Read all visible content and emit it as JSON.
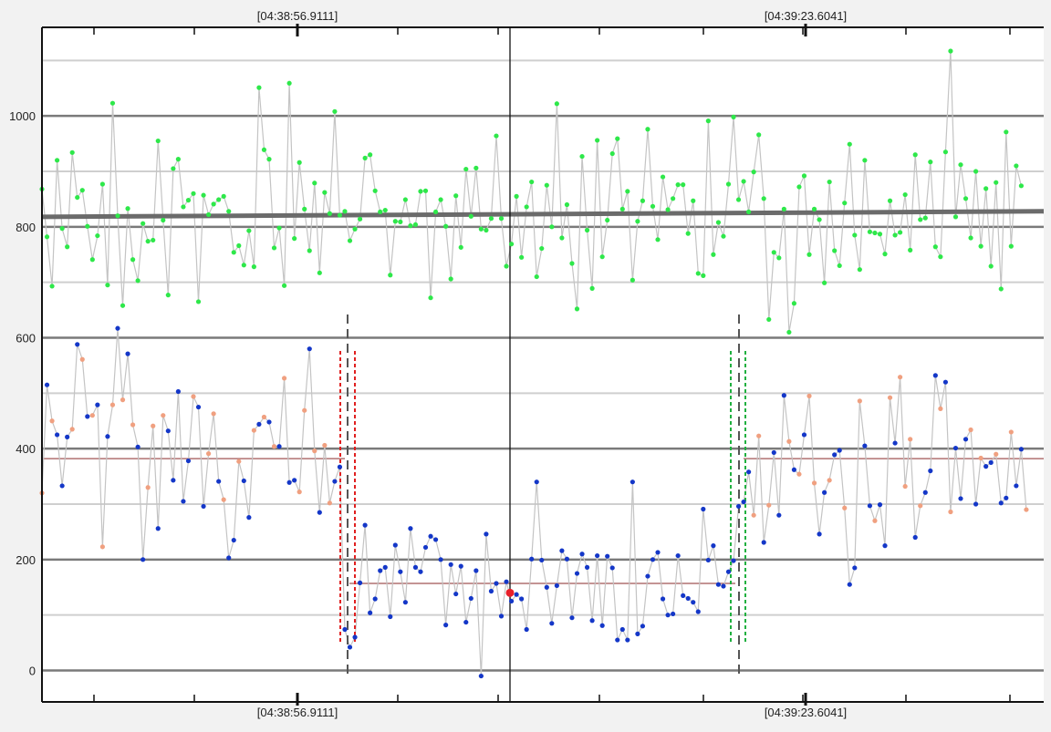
{
  "chart_data": {
    "type": "scatter",
    "title": "",
    "xlabel": "",
    "ylabel": "",
    "ylim": [
      -60,
      1160
    ],
    "grid": true,
    "y_ticks": [
      0,
      200,
      400,
      600,
      800,
      1000
    ],
    "markers": {
      "left": {
        "label": "[04:38:56.9111]"
      },
      "right": {
        "label": "[04:39:23.6041]"
      }
    },
    "trend_line": {
      "y_start": 818,
      "y_end": 828,
      "color": "#6b6b6b"
    },
    "reference_levels": [
      {
        "segment": "before",
        "y": 382
      },
      {
        "segment": "between",
        "y": 157
      },
      {
        "segment": "after",
        "y": 382
      }
    ],
    "cursor_point": {
      "index": 150,
      "y": 140,
      "color": "#e8202a"
    },
    "colors": {
      "upper": "#2ee84a",
      "blue": "#1437c8",
      "orange": "#f0a080",
      "line": "#c4c4c4",
      "grid_major": "#7a7a7a",
      "grid_minor": "#cfcfcf",
      "ref_line": "#b07070",
      "red_dash": "#e02020",
      "green_dash": "#20b040",
      "marker_dash": "#555555"
    },
    "series": [
      {
        "color": "green",
        "values": [
          868,
          782,
          693,
          920,
          797,
          764,
          934,
          853,
          866,
          801,
          741,
          784,
          877,
          695,
          1023,
          820,
          658,
          833,
          741,
          703,
          806,
          774,
          776,
          955,
          812,
          677,
          905,
          922,
          836,
          848,
          860,
          665,
          857,
          822,
          841,
          849,
          855,
          828,
          754,
          766,
          731,
          793,
          728,
          1051,
          939,
          922,
          762,
          798,
          694,
          1059,
          779,
          916,
          832,
          757,
          879,
          717,
          862,
          824,
          1008,
          821,
          828,
          775,
          796,
          814,
          924,
          930,
          865,
          827,
          830,
          713,
          810,
          809,
          849,
          802,
          804,
          864,
          865,
          672,
          827,
          849,
          801,
          706,
          856,
          763,
          904,
          819,
          906,
          796,
          794,
          815,
          964,
          815,
          729,
          769,
          855,
          745,
          836,
          881,
          710,
          761,
          875,
          800,
          1022,
          780,
          840,
          734,
          652,
          927,
          794,
          689,
          956,
          746,
          812,
          932,
          959,
          832,
          864,
          704,
          810,
          847,
          976,
          837,
          777,
          890,
          831,
          851,
          876,
          876,
          788,
          847,
          716,
          712,
          991,
          750,
          808,
          783,
          877,
          998,
          849,
          882,
          827,
          899,
          966,
          851,
          633,
          754,
          744,
          832,
          610,
          662,
          872,
          892,
          750,
          832,
          813,
          699,
          881,
          757,
          730,
          843,
          949,
          785,
          723,
          920,
          791,
          789,
          787,
          751,
          847,
          785,
          790,
          858,
          758,
          930,
          813,
          816,
          917,
          764,
          746,
          935,
          1117,
          818,
          912,
          851,
          780,
          900,
          765,
          869,
          729,
          880,
          688,
          971,
          765,
          910,
          874
        ]
      },
      {
        "color": "mixed",
        "values": [
          320,
          515,
          450,
          425,
          333,
          421,
          435,
          588,
          561,
          458,
          460,
          479,
          223,
          422,
          479,
          617,
          488,
          571,
          443,
          403,
          200,
          330,
          441,
          256,
          460,
          432,
          343,
          503,
          305,
          378,
          494,
          475,
          296,
          391,
          463,
          341,
          308,
          203,
          235,
          377,
          342,
          276,
          433,
          444,
          457,
          448,
          404,
          404,
          527,
          339,
          343,
          322,
          469,
          580,
          396,
          285,
          406,
          302,
          341,
          367,
          74,
          42,
          60,
          158,
          262,
          104,
          129,
          180,
          186,
          97,
          226,
          178,
          123,
          256,
          186,
          178,
          222,
          242,
          236,
          200,
          82,
          191,
          138,
          188,
          87,
          130,
          180,
          -10,
          246,
          143,
          157,
          98,
          160,
          125,
          137,
          129,
          74,
          201,
          340,
          199,
          150,
          85,
          153,
          216,
          201,
          95,
          175,
          210,
          186,
          90,
          207,
          81,
          206,
          185,
          55,
          74,
          55,
          340,
          66,
          80,
          170,
          200,
          213,
          129,
          100,
          102,
          207,
          135,
          130,
          123,
          106,
          291,
          199,
          225,
          155,
          152,
          178,
          198,
          296,
          304,
          358,
          280,
          423,
          231,
          298,
          393,
          280,
          496,
          413,
          362,
          354,
          425,
          495,
          338,
          246,
          321,
          343,
          389,
          397,
          293,
          155,
          185,
          486,
          405,
          297,
          270,
          299,
          225,
          492,
          410,
          529,
          332,
          417,
          240,
          297,
          321,
          360,
          532,
          472,
          520,
          286,
          401,
          310,
          417,
          434,
          300,
          383,
          368,
          375,
          390,
          302,
          311,
          430,
          333,
          399,
          290
        ]
      }
    ]
  }
}
